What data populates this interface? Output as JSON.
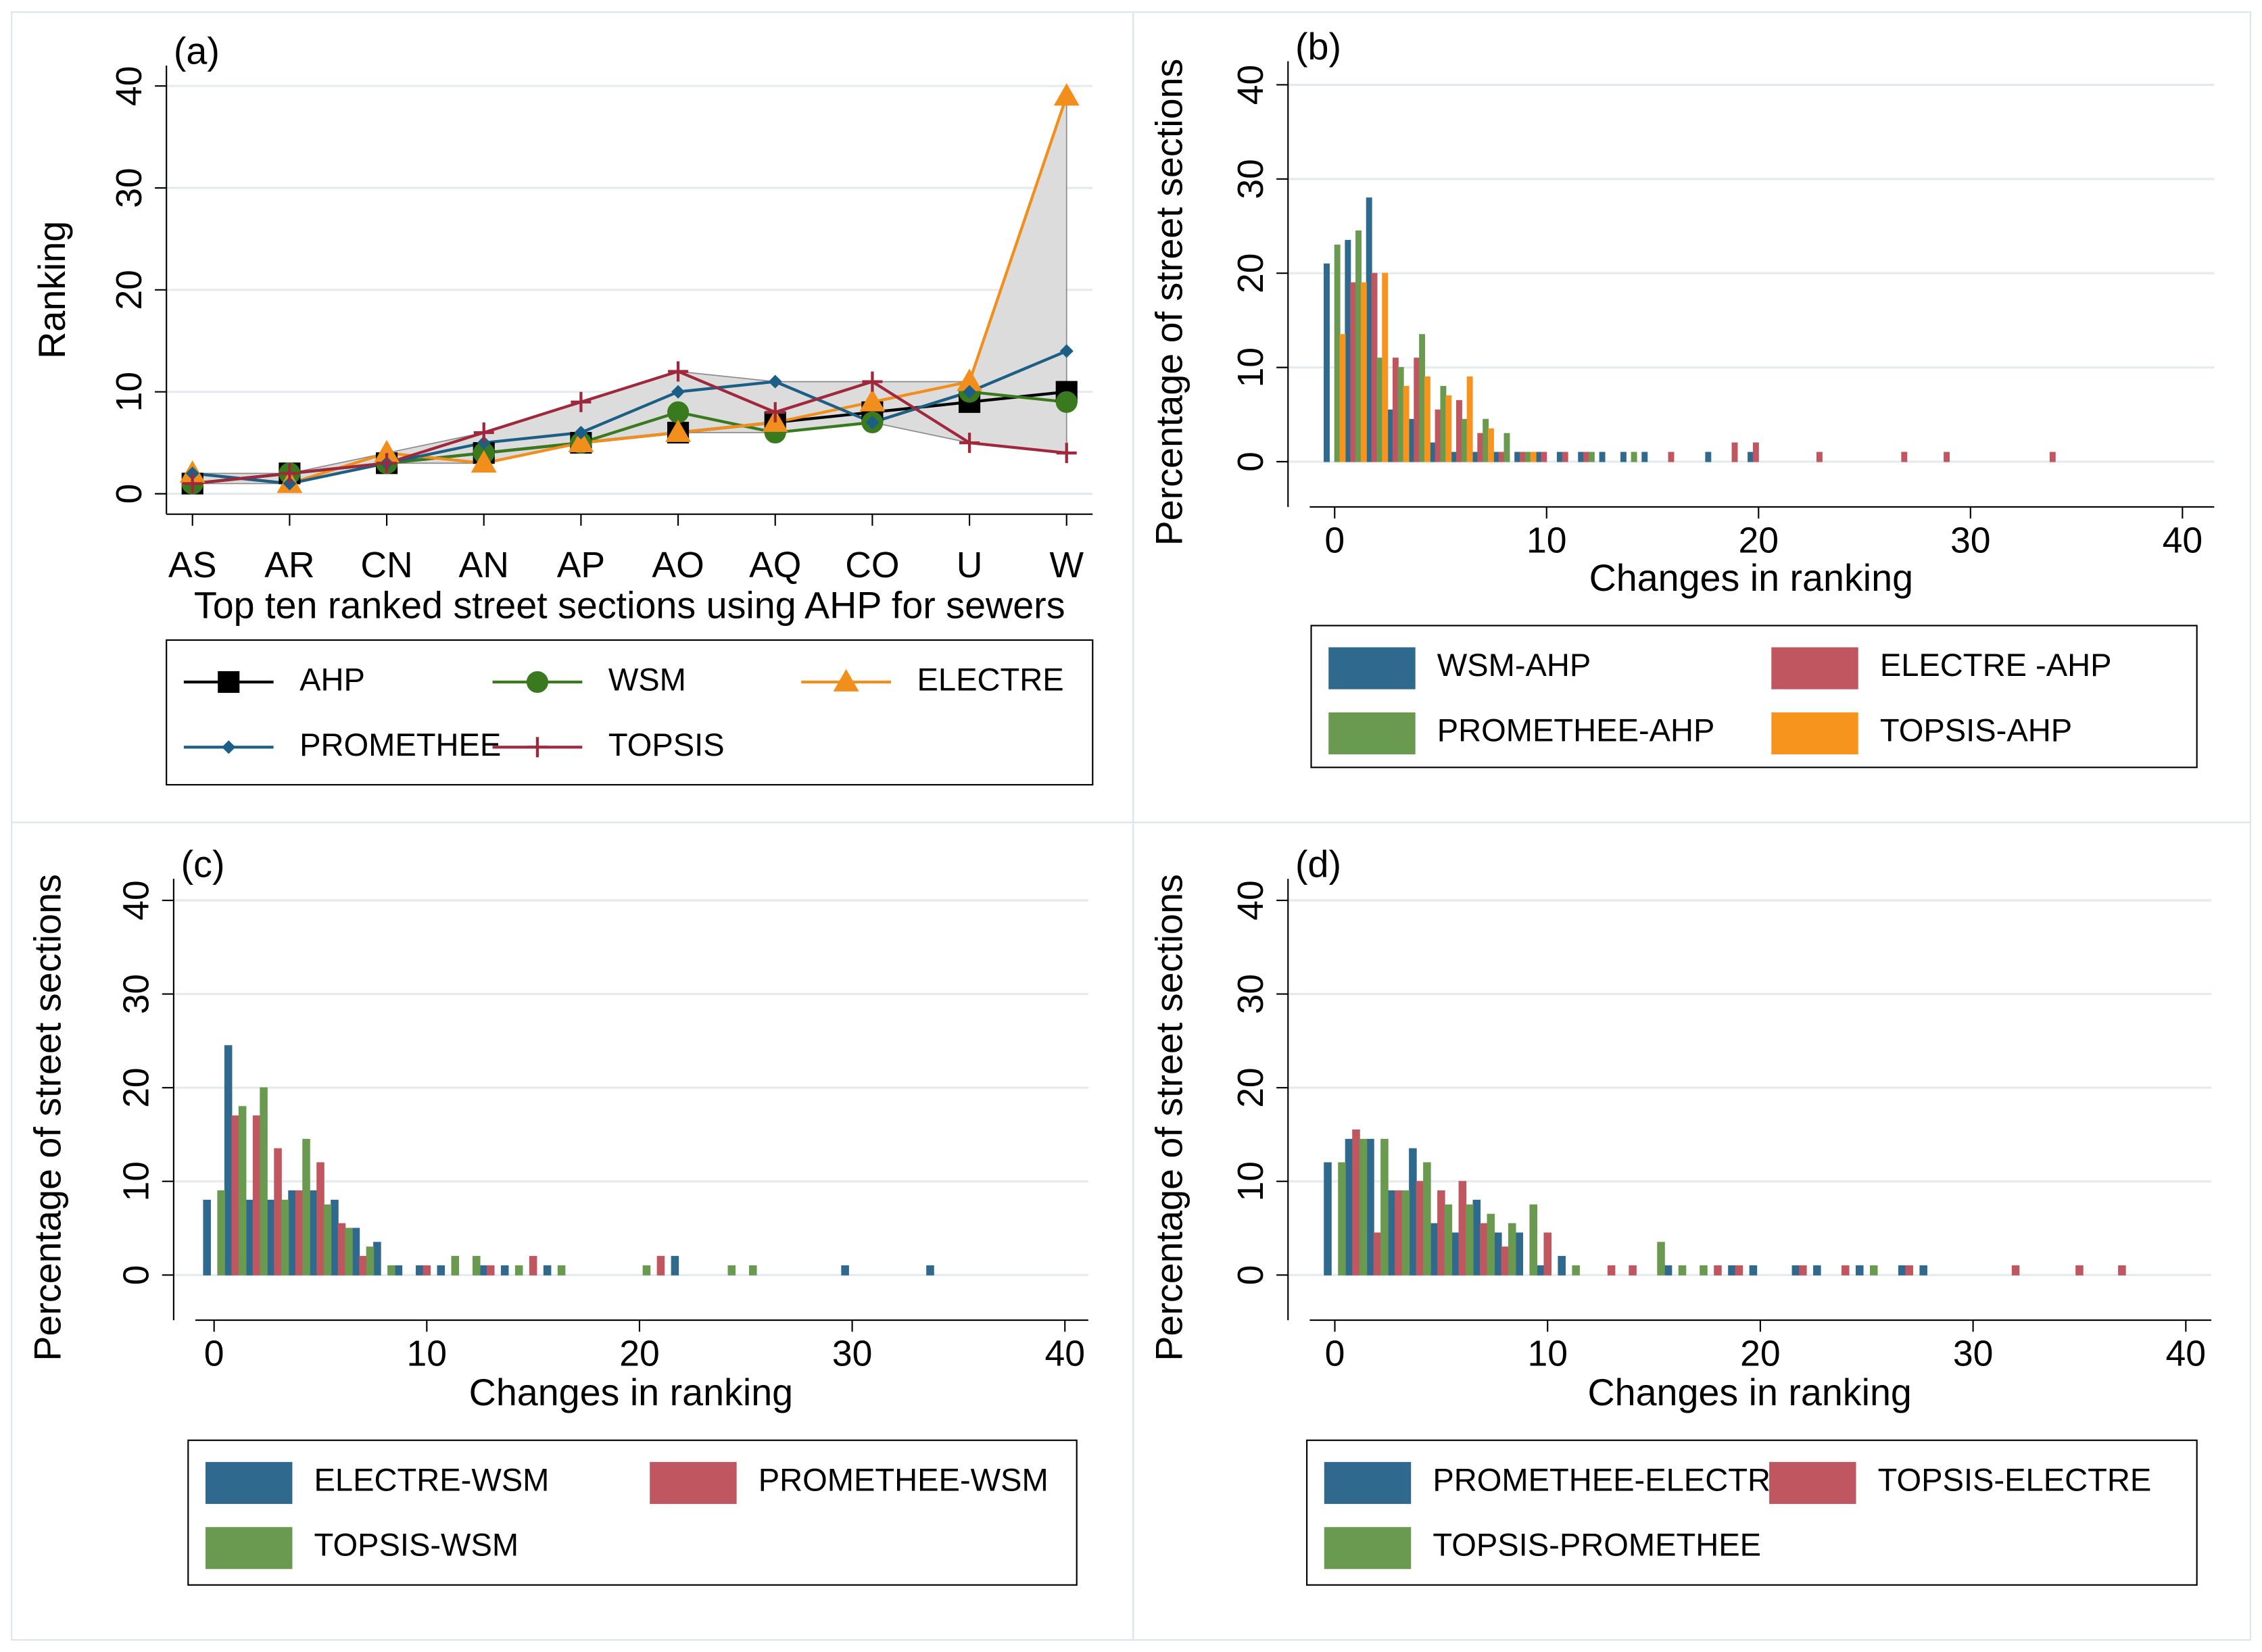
{
  "chart_data": [
    {
      "type": "line",
      "panel_label": "(a)",
      "y_label": "Ranking",
      "x_label": "Top ten ranked street sections using AHP for sewers",
      "categories": [
        "AS",
        "AR",
        "CN",
        "AN",
        "AP",
        "AO",
        "AQ",
        "CO",
        "U",
        "W"
      ],
      "ylim": [
        -2,
        42
      ],
      "yticks": [
        0,
        10,
        20,
        30,
        40
      ],
      "grid": true,
      "range_band": true,
      "series": [
        {
          "name": "AHP",
          "color": "#000000",
          "marker": "square",
          "values": [
            1,
            2,
            3,
            4,
            5,
            6,
            7,
            8,
            9,
            10
          ]
        },
        {
          "name": "WSM",
          "color": "#3a7a1e",
          "marker": "circle",
          "values": [
            1,
            2,
            3,
            4,
            5,
            8,
            6,
            7,
            10,
            9
          ]
        },
        {
          "name": "ELECTRE",
          "color": "#f28e1c",
          "marker": "triangle",
          "values": [
            2,
            1,
            4,
            3,
            5,
            6,
            7,
            9,
            11,
            39
          ]
        },
        {
          "name": "PROMETHEE",
          "color": "#1b5e86",
          "marker": "diamond",
          "values": [
            2,
            1,
            3,
            5,
            6,
            10,
            11,
            7,
            10,
            14
          ]
        },
        {
          "name": "TOPSIS",
          "color": "#a0283c",
          "marker": "plus",
          "values": [
            1,
            2,
            3,
            6,
            9,
            12,
            8,
            11,
            5,
            4
          ]
        }
      ]
    },
    {
      "type": "histogram",
      "panel_label": "(b)",
      "y_label": "Percentage of street sections",
      "x_label": "Changes in ranking",
      "xlim": [
        -2.2,
        41.5
      ],
      "xticks": [
        0,
        10,
        20,
        30,
        40
      ],
      "ylim": [
        -2.5,
        42.5
      ],
      "yticks": [
        0,
        10,
        20,
        30,
        40
      ],
      "grid": true,
      "series": [
        {
          "name": "WSM-AHP",
          "color": "#2f6a8e",
          "x": [
            0,
            1,
            2,
            3,
            4,
            5,
            6,
            7,
            8,
            9,
            10,
            11,
            12,
            13,
            14,
            15,
            18,
            20
          ],
          "values": [
            21,
            23.5,
            28,
            5.5,
            4.5,
            2,
            1,
            1,
            1,
            1,
            1,
            1,
            1,
            1,
            1,
            1,
            1,
            1
          ]
        },
        {
          "name": "ELECTRE -AHP",
          "color": "#c0565f",
          "x": [
            1,
            2,
            3,
            4,
            5,
            6,
            7,
            8,
            9,
            10,
            11,
            12,
            16,
            19,
            20,
            23,
            27,
            29,
            34
          ],
          "values": [
            19,
            20,
            11,
            11,
            5.5,
            6.5,
            3,
            1,
            1,
            1,
            1,
            1,
            1,
            2,
            2,
            1,
            1,
            1,
            1
          ]
        },
        {
          "name": "PROMETHEE-AHP",
          "color": "#6a9a4f",
          "x": [
            0,
            1,
            2,
            3,
            4,
            5,
            6,
            7,
            8,
            9,
            12,
            14
          ],
          "values": [
            23,
            24.5,
            11,
            10,
            13.5,
            8,
            4.5,
            4.5,
            3,
            1,
            1,
            1
          ]
        },
        {
          "name": "TOPSIS-AHP",
          "color": "#f7941d",
          "x": [
            0,
            1,
            2,
            3,
            4,
            5,
            6,
            7,
            9
          ],
          "values": [
            13.5,
            19,
            20,
            8,
            9,
            7,
            9,
            3.5,
            1
          ]
        }
      ]
    },
    {
      "type": "histogram",
      "panel_label": "(c)",
      "y_label": "Percentage of street sections",
      "x_label": "Changes in ranking",
      "xlim": [
        -1.9,
        41.1
      ],
      "xticks": [
        0,
        10,
        20,
        30,
        40
      ],
      "ylim": [
        -2.5,
        42.3
      ],
      "yticks": [
        0,
        10,
        20,
        30,
        40
      ],
      "grid": true,
      "series": [
        {
          "name": "ELECTRE-WSM",
          "color": "#2f6a8e",
          "x": [
            0,
            1,
            2,
            3,
            4,
            5,
            6,
            7,
            8,
            9,
            10,
            11,
            13,
            14,
            16,
            22,
            30,
            34
          ],
          "values": [
            8,
            24.5,
            8,
            8,
            9,
            9,
            8,
            5,
            3.5,
            1,
            1,
            1,
            1,
            1,
            1,
            2,
            1,
            1
          ]
        },
        {
          "name": "PROMETHEE-WSM",
          "color": "#c0565f",
          "x": [
            1,
            2,
            3,
            4,
            5,
            6,
            7,
            10,
            13,
            15,
            21
          ],
          "values": [
            17,
            17,
            13.5,
            9,
            12,
            5.5,
            2,
            1,
            1,
            2,
            2
          ]
        },
        {
          "name": "TOPSIS-WSM",
          "color": "#6a9a4f",
          "x": [
            0,
            1,
            2,
            3,
            4,
            5,
            6,
            7,
            8,
            11,
            12,
            14,
            16,
            20,
            24,
            25
          ],
          "values": [
            9,
            18,
            20,
            8,
            14.5,
            7.5,
            5,
            3,
            1,
            2,
            2,
            1,
            1,
            1,
            1,
            1
          ]
        }
      ]
    },
    {
      "type": "histogram",
      "panel_label": "(d)",
      "y_label": "Percentage of street sections",
      "x_label": "Changes in ranking",
      "xlim": [
        -2.2,
        41.2
      ],
      "xticks": [
        0,
        10,
        20,
        30,
        40
      ],
      "ylim": [
        -2.5,
        42.3
      ],
      "yticks": [
        0,
        10,
        20,
        30,
        40
      ],
      "grid": true,
      "series": [
        {
          "name": "PROMETHEE-ELECTRE",
          "color": "#2f6a8e",
          "x": [
            0,
            1,
            2,
            3,
            4,
            5,
            6,
            7,
            8,
            9,
            10,
            11,
            16,
            19,
            20,
            22,
            23,
            25,
            27,
            28
          ],
          "values": [
            12,
            14.5,
            14.5,
            9,
            13.5,
            5.5,
            4.5,
            8,
            4.5,
            4.5,
            1,
            2,
            1,
            1,
            1,
            1,
            1,
            1,
            1,
            1
          ]
        },
        {
          "name": "TOPSIS-ELECTRE",
          "color": "#c0565f",
          "x": [
            1,
            2,
            3,
            4,
            5,
            6,
            7,
            8,
            10,
            13,
            14,
            18,
            19,
            22,
            24,
            27,
            32,
            35,
            37
          ],
          "values": [
            15.5,
            4.5,
            9,
            10,
            9,
            10,
            5.5,
            3,
            4.5,
            1,
            1,
            1,
            1,
            1,
            1,
            1,
            1,
            1,
            1
          ]
        },
        {
          "name": "TOPSIS-PROMETHEE",
          "color": "#6a9a4f",
          "x": [
            0,
            1,
            2,
            3,
            4,
            5,
            6,
            7,
            8,
            9,
            11,
            15,
            16,
            17,
            25
          ],
          "values": [
            12,
            14.5,
            14.5,
            9,
            12,
            7.5,
            7.5,
            6.5,
            5.5,
            7.5,
            1,
            3.5,
            1,
            1,
            1
          ]
        }
      ]
    }
  ]
}
